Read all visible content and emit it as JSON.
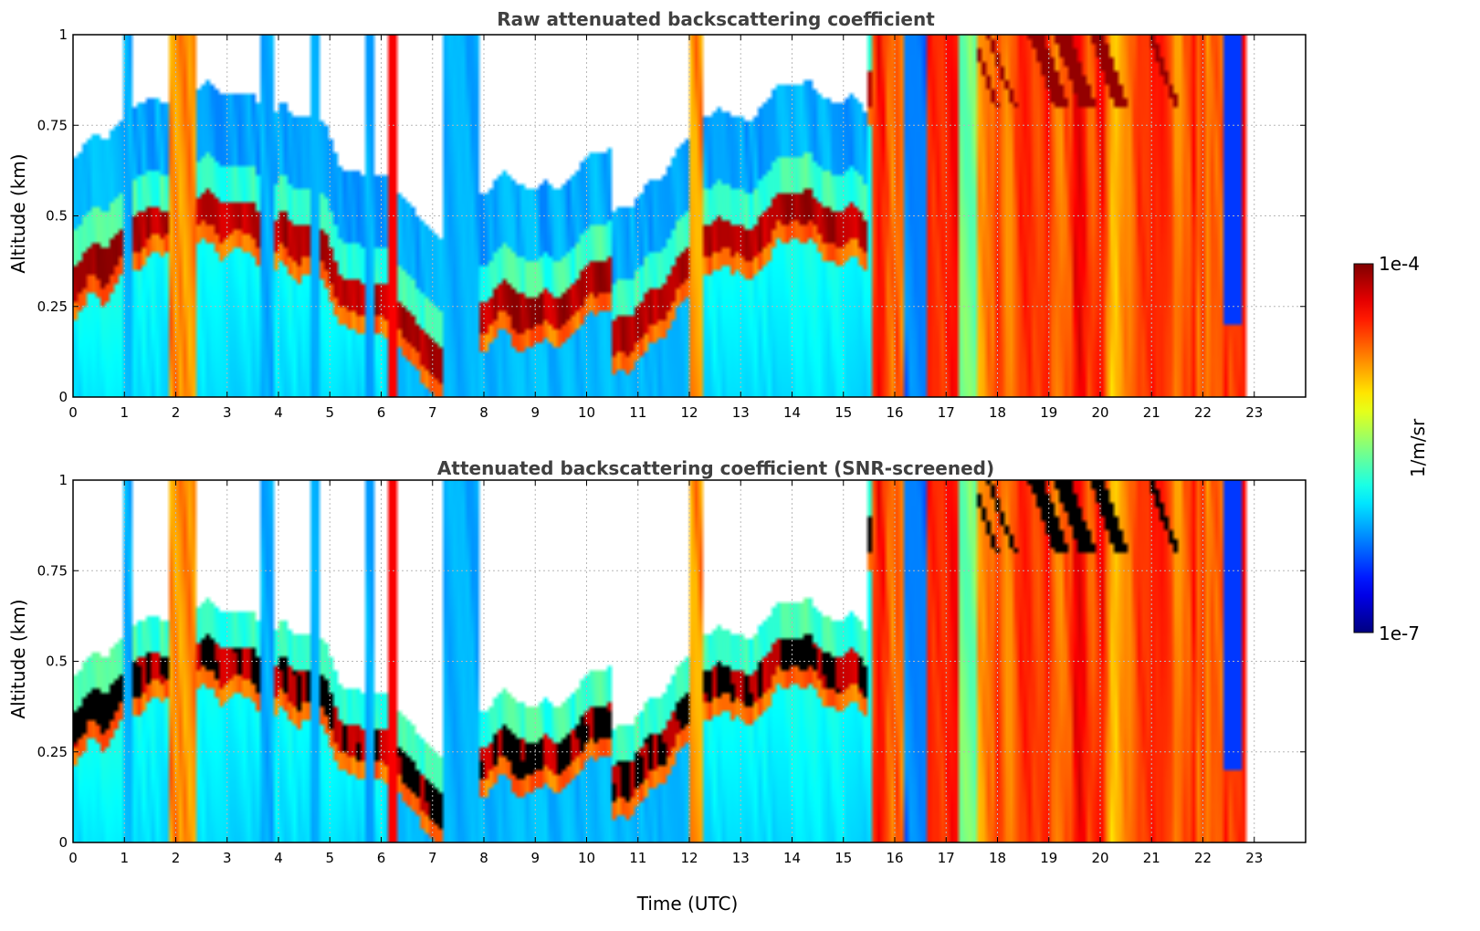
{
  "chart_data": [
    {
      "type": "heatmap",
      "title": "Raw attenuated backscattering coefficient",
      "xlabel": "",
      "ylabel": "Altitude (km)",
      "xlim": [
        0,
        24
      ],
      "ylim": [
        0,
        1
      ],
      "xticks": [
        "0",
        "1",
        "2",
        "3",
        "4",
        "5",
        "6",
        "7",
        "8",
        "9",
        "10",
        "11",
        "12",
        "13",
        "14",
        "15",
        "16",
        "17",
        "18",
        "19",
        "20",
        "21",
        "22",
        "23"
      ],
      "yticks": [
        "0",
        "0.25",
        "0.5",
        "0.75",
        "1"
      ],
      "grid": true,
      "screened": false
    },
    {
      "type": "heatmap",
      "title": "Attenuated backscattering coefficient (SNR-screened)",
      "xlabel": "Time (UTC)",
      "ylabel": "Altitude (km)",
      "xlim": [
        0,
        24
      ],
      "ylim": [
        0,
        1
      ],
      "xticks": [
        "0",
        "1",
        "2",
        "3",
        "4",
        "5",
        "6",
        "7",
        "8",
        "9",
        "10",
        "11",
        "12",
        "13",
        "14",
        "15",
        "16",
        "17",
        "18",
        "19",
        "20",
        "21",
        "22",
        "23"
      ],
      "yticks": [
        "0",
        "0.25",
        "0.5",
        "0.75",
        "1"
      ],
      "grid": true,
      "screened": true
    }
  ],
  "colorbar": {
    "label": "1/m/sr",
    "max_label": "1e-4",
    "min_label": "1e-7",
    "scale": "log",
    "range": [
      1e-07,
      0.0001
    ],
    "colormap": "jet"
  },
  "data_end_hour": 22.8,
  "colors": {
    "background": "#ffffff",
    "title": "#404040",
    "grid": "#b8b8b8",
    "screened_strong": "#000000"
  }
}
